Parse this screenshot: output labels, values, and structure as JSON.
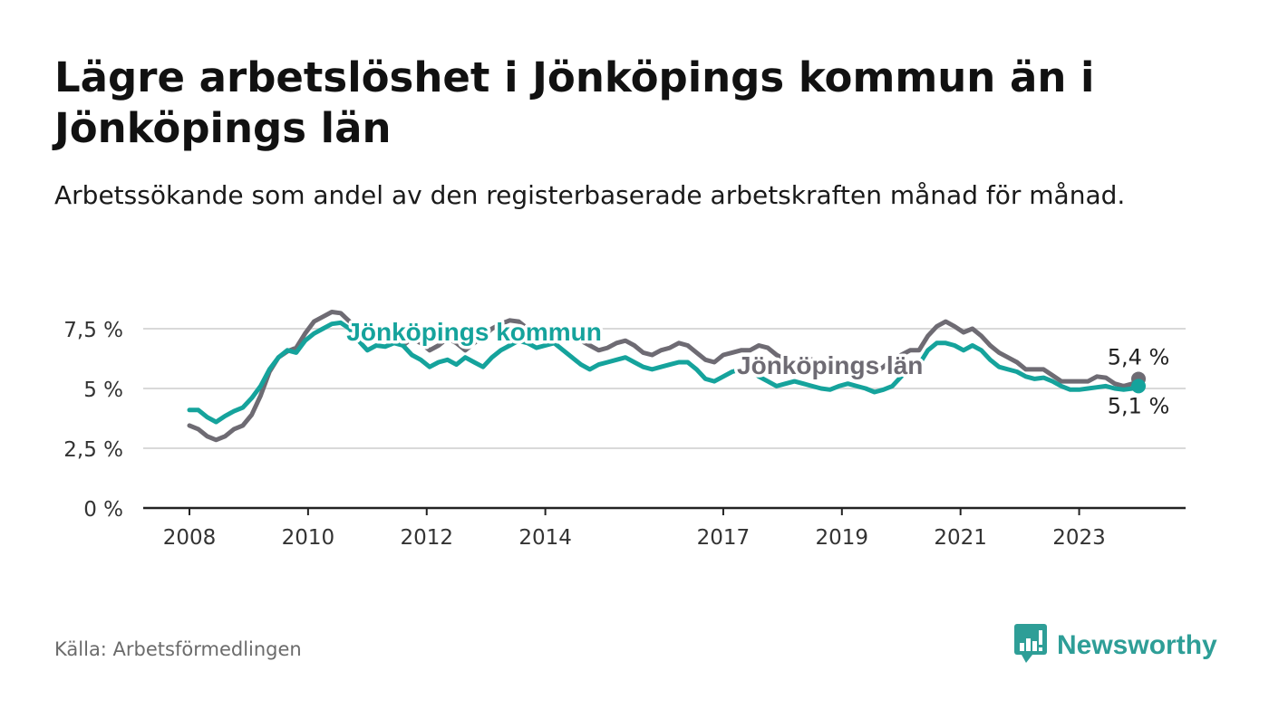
{
  "title": "Lägre arbetslöshet i Jönköpings kommun än i Jönköpings län",
  "subtitle": "Arbetssökande som andel av den registerbaserade arbetskraften månad för månad.",
  "source": "Källa: Arbetsförmedlingen",
  "brand": {
    "name": "Newsworthy",
    "icon": "newsworthy-logo-icon",
    "color": "#2e9e97"
  },
  "chart_data": {
    "type": "line",
    "x_ticks": [
      2008,
      2010,
      2012,
      2014,
      2017,
      2019,
      2021,
      2023
    ],
    "tick_labels": [
      "2008",
      "2010",
      "2012",
      "2014",
      "2017",
      "2019",
      "2021",
      "2023"
    ],
    "xlim": [
      2008,
      2024
    ],
    "ylim": [
      0,
      7.5
    ],
    "y_ticks": [
      0,
      2.5,
      5,
      7.5
    ],
    "y_tick_labels": [
      "0 %",
      "2,5 %",
      "5 %",
      "7,5 %"
    ],
    "grid": true,
    "series": [
      {
        "name": "Jönköpings län",
        "color": "#6e6b73",
        "end_label": "5,4 %",
        "points": [
          [
            2008.0,
            3.45
          ],
          [
            2008.15,
            3.3
          ],
          [
            2008.3,
            3.0
          ],
          [
            2008.45,
            2.85
          ],
          [
            2008.6,
            3.0
          ],
          [
            2008.75,
            3.3
          ],
          [
            2008.9,
            3.45
          ],
          [
            2009.05,
            3.9
          ],
          [
            2009.2,
            4.7
          ],
          [
            2009.35,
            5.7
          ],
          [
            2009.5,
            6.3
          ],
          [
            2009.65,
            6.55
          ],
          [
            2009.8,
            6.7
          ],
          [
            2009.95,
            7.3
          ],
          [
            2010.1,
            7.8
          ],
          [
            2010.25,
            8.0
          ],
          [
            2010.4,
            8.2
          ],
          [
            2010.55,
            8.15
          ],
          [
            2010.7,
            7.8
          ],
          [
            2010.85,
            7.4
          ],
          [
            2011.0,
            7.1
          ],
          [
            2011.15,
            7.35
          ],
          [
            2011.3,
            7.2
          ],
          [
            2011.45,
            7.0
          ],
          [
            2011.6,
            6.8
          ],
          [
            2011.75,
            7.1
          ],
          [
            2011.9,
            6.9
          ],
          [
            2012.05,
            6.6
          ],
          [
            2012.2,
            6.8
          ],
          [
            2012.35,
            7.1
          ],
          [
            2012.5,
            6.9
          ],
          [
            2012.65,
            6.6
          ],
          [
            2012.8,
            6.9
          ],
          [
            2012.95,
            7.2
          ],
          [
            2013.1,
            7.5
          ],
          [
            2013.25,
            7.7
          ],
          [
            2013.4,
            7.85
          ],
          [
            2013.55,
            7.8
          ],
          [
            2013.7,
            7.5
          ],
          [
            2013.85,
            7.3
          ],
          [
            2014.0,
            7.4
          ],
          [
            2014.15,
            7.5
          ],
          [
            2014.3,
            7.45
          ],
          [
            2014.45,
            7.3
          ],
          [
            2014.6,
            7.0
          ],
          [
            2014.75,
            6.8
          ],
          [
            2014.9,
            6.6
          ],
          [
            2015.05,
            6.7
          ],
          [
            2015.2,
            6.9
          ],
          [
            2015.35,
            7.0
          ],
          [
            2015.5,
            6.8
          ],
          [
            2015.65,
            6.5
          ],
          [
            2015.8,
            6.4
          ],
          [
            2015.95,
            6.6
          ],
          [
            2016.1,
            6.7
          ],
          [
            2016.25,
            6.9
          ],
          [
            2016.4,
            6.8
          ],
          [
            2016.55,
            6.5
          ],
          [
            2016.7,
            6.2
          ],
          [
            2016.85,
            6.1
          ],
          [
            2017.0,
            6.4
          ],
          [
            2017.15,
            6.5
          ],
          [
            2017.3,
            6.6
          ],
          [
            2017.45,
            6.6
          ],
          [
            2017.6,
            6.8
          ],
          [
            2017.75,
            6.7
          ],
          [
            2017.9,
            6.4
          ],
          [
            2018.05,
            6.2
          ],
          [
            2018.2,
            6.1
          ],
          [
            2018.35,
            6.3
          ],
          [
            2018.5,
            6.2
          ],
          [
            2018.65,
            6.0
          ],
          [
            2018.8,
            5.8
          ],
          [
            2018.95,
            5.9
          ],
          [
            2019.1,
            6.0
          ],
          [
            2019.25,
            5.8
          ],
          [
            2019.4,
            5.6
          ],
          [
            2019.55,
            5.65
          ],
          [
            2019.7,
            5.9
          ],
          [
            2019.85,
            6.2
          ],
          [
            2020.0,
            6.4
          ],
          [
            2020.15,
            6.6
          ],
          [
            2020.3,
            6.6
          ],
          [
            2020.45,
            7.2
          ],
          [
            2020.6,
            7.6
          ],
          [
            2020.75,
            7.8
          ],
          [
            2020.9,
            7.6
          ],
          [
            2021.05,
            7.35
          ],
          [
            2021.2,
            7.5
          ],
          [
            2021.35,
            7.2
          ],
          [
            2021.5,
            6.8
          ],
          [
            2021.65,
            6.5
          ],
          [
            2021.8,
            6.3
          ],
          [
            2021.95,
            6.1
          ],
          [
            2022.1,
            5.8
          ],
          [
            2022.25,
            5.8
          ],
          [
            2022.4,
            5.8
          ],
          [
            2022.55,
            5.55
          ],
          [
            2022.7,
            5.3
          ],
          [
            2022.85,
            5.3
          ],
          [
            2023.0,
            5.3
          ],
          [
            2023.15,
            5.3
          ],
          [
            2023.3,
            5.5
          ],
          [
            2023.45,
            5.45
          ],
          [
            2023.6,
            5.2
          ],
          [
            2023.75,
            5.1
          ],
          [
            2023.9,
            5.2
          ],
          [
            2024.0,
            5.4
          ]
        ]
      },
      {
        "name": "Jönköpings kommun",
        "color": "#15a39c",
        "end_label": "5,1 %",
        "points": [
          [
            2008.0,
            4.1
          ],
          [
            2008.15,
            4.1
          ],
          [
            2008.3,
            3.8
          ],
          [
            2008.45,
            3.6
          ],
          [
            2008.6,
            3.85
          ],
          [
            2008.75,
            4.05
          ],
          [
            2008.9,
            4.2
          ],
          [
            2009.05,
            4.6
          ],
          [
            2009.2,
            5.1
          ],
          [
            2009.35,
            5.8
          ],
          [
            2009.5,
            6.3
          ],
          [
            2009.65,
            6.6
          ],
          [
            2009.8,
            6.5
          ],
          [
            2009.95,
            7.0
          ],
          [
            2010.1,
            7.3
          ],
          [
            2010.25,
            7.5
          ],
          [
            2010.4,
            7.7
          ],
          [
            2010.55,
            7.75
          ],
          [
            2010.7,
            7.5
          ],
          [
            2010.85,
            7.0
          ],
          [
            2011.0,
            6.6
          ],
          [
            2011.15,
            6.8
          ],
          [
            2011.3,
            6.75
          ],
          [
            2011.45,
            6.9
          ],
          [
            2011.6,
            6.8
          ],
          [
            2011.75,
            6.4
          ],
          [
            2011.9,
            6.2
          ],
          [
            2012.05,
            5.9
          ],
          [
            2012.2,
            6.1
          ],
          [
            2012.35,
            6.2
          ],
          [
            2012.5,
            6.0
          ],
          [
            2012.65,
            6.3
          ],
          [
            2012.8,
            6.1
          ],
          [
            2012.95,
            5.9
          ],
          [
            2013.1,
            6.3
          ],
          [
            2013.25,
            6.6
          ],
          [
            2013.4,
            6.8
          ],
          [
            2013.55,
            7.0
          ],
          [
            2013.7,
            6.9
          ],
          [
            2013.85,
            6.7
          ],
          [
            2014.0,
            6.8
          ],
          [
            2014.15,
            6.9
          ],
          [
            2014.3,
            6.6
          ],
          [
            2014.45,
            6.3
          ],
          [
            2014.6,
            6.0
          ],
          [
            2014.75,
            5.8
          ],
          [
            2014.9,
            6.0
          ],
          [
            2015.05,
            6.1
          ],
          [
            2015.2,
            6.2
          ],
          [
            2015.35,
            6.3
          ],
          [
            2015.5,
            6.1
          ],
          [
            2015.65,
            5.9
          ],
          [
            2015.8,
            5.8
          ],
          [
            2015.95,
            5.9
          ],
          [
            2016.1,
            6.0
          ],
          [
            2016.25,
            6.1
          ],
          [
            2016.4,
            6.1
          ],
          [
            2016.55,
            5.8
          ],
          [
            2016.7,
            5.4
          ],
          [
            2016.85,
            5.3
          ],
          [
            2017.0,
            5.5
          ],
          [
            2017.15,
            5.7
          ],
          [
            2017.3,
            5.8
          ],
          [
            2017.45,
            5.8
          ],
          [
            2017.6,
            5.5
          ],
          [
            2017.75,
            5.3
          ],
          [
            2017.9,
            5.1
          ],
          [
            2018.05,
            5.2
          ],
          [
            2018.2,
            5.3
          ],
          [
            2018.35,
            5.2
          ],
          [
            2018.5,
            5.1
          ],
          [
            2018.65,
            5.0
          ],
          [
            2018.8,
            4.95
          ],
          [
            2018.95,
            5.1
          ],
          [
            2019.1,
            5.2
          ],
          [
            2019.25,
            5.1
          ],
          [
            2019.4,
            5.0
          ],
          [
            2019.55,
            4.85
          ],
          [
            2019.7,
            4.95
          ],
          [
            2019.85,
            5.1
          ],
          [
            2020.0,
            5.5
          ],
          [
            2020.15,
            5.8
          ],
          [
            2020.3,
            6.0
          ],
          [
            2020.45,
            6.6
          ],
          [
            2020.6,
            6.9
          ],
          [
            2020.75,
            6.9
          ],
          [
            2020.9,
            6.8
          ],
          [
            2021.05,
            6.6
          ],
          [
            2021.2,
            6.8
          ],
          [
            2021.35,
            6.6
          ],
          [
            2021.5,
            6.2
          ],
          [
            2021.65,
            5.9
          ],
          [
            2021.8,
            5.8
          ],
          [
            2021.95,
            5.7
          ],
          [
            2022.1,
            5.5
          ],
          [
            2022.25,
            5.4
          ],
          [
            2022.4,
            5.45
          ],
          [
            2022.55,
            5.3
          ],
          [
            2022.7,
            5.1
          ],
          [
            2022.85,
            4.95
          ],
          [
            2023.0,
            4.95
          ],
          [
            2023.15,
            5.0
          ],
          [
            2023.3,
            5.05
          ],
          [
            2023.45,
            5.1
          ],
          [
            2023.6,
            5.0
          ],
          [
            2023.75,
            4.95
          ],
          [
            2023.9,
            5.0
          ],
          [
            2024.0,
            5.1
          ]
        ]
      }
    ],
    "annotations": [
      {
        "text": "Jönköpings kommun",
        "series": "Jönköpings kommun",
        "x": 2012.8,
        "y": 7.0
      },
      {
        "text": "Jönköpings län",
        "series": "Jönköpings län",
        "x": 2018.8,
        "y": 5.6
      }
    ]
  }
}
